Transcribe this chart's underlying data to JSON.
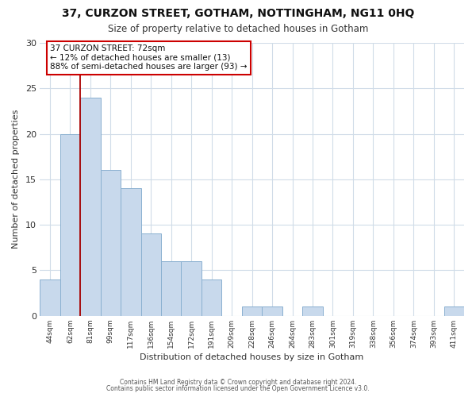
{
  "title": "37, CURZON STREET, GOTHAM, NOTTINGHAM, NG11 0HQ",
  "subtitle": "Size of property relative to detached houses in Gotham",
  "xlabel": "Distribution of detached houses by size in Gotham",
  "ylabel": "Number of detached properties",
  "bar_labels": [
    "44sqm",
    "62sqm",
    "81sqm",
    "99sqm",
    "117sqm",
    "136sqm",
    "154sqm",
    "172sqm",
    "191sqm",
    "209sqm",
    "228sqm",
    "246sqm",
    "264sqm",
    "283sqm",
    "301sqm",
    "319sqm",
    "338sqm",
    "356sqm",
    "374sqm",
    "393sqm",
    "411sqm"
  ],
  "bar_values": [
    4,
    20,
    24,
    16,
    14,
    9,
    6,
    6,
    4,
    0,
    1,
    1,
    0,
    1,
    0,
    0,
    0,
    0,
    0,
    0,
    1
  ],
  "bar_color": "#c8d9ec",
  "bar_edge_color": "#8ab0d0",
  "grid_color": "#d0dce8",
  "vline_x_idx": 1,
  "vline_color": "#aa0000",
  "annotation_text": "37 CURZON STREET: 72sqm\n← 12% of detached houses are smaller (13)\n88% of semi-detached houses are larger (93) →",
  "annotation_box_color": "#ffffff",
  "annotation_box_edge": "#cc0000",
  "ylim": [
    0,
    30
  ],
  "yticks": [
    0,
    5,
    10,
    15,
    20,
    25,
    30
  ],
  "footer1": "Contains HM Land Registry data © Crown copyright and database right 2024.",
  "footer2": "Contains public sector information licensed under the Open Government Licence v3.0.",
  "bg_color": "#ffffff",
  "plot_bg_color": "#ffffff"
}
